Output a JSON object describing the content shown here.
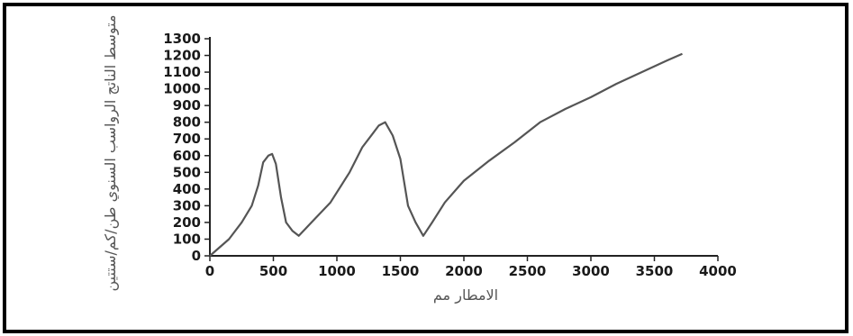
{
  "colors": {
    "line": "#555555",
    "axis": "#222222",
    "frame": "#000000"
  },
  "chart_data": {
    "type": "line",
    "title": "",
    "xlabel": "الامطار مم",
    "ylabel": "متوسط الناتج الرواسب السنوي طن/كم/ستتين",
    "xlim": [
      0,
      4000
    ],
    "ylim": [
      0,
      1300
    ],
    "xticks": [
      "0",
      "500",
      "1000",
      "1500",
      "2000",
      "2500",
      "3000",
      "3500",
      "4000"
    ],
    "yticks": [
      "0",
      "100",
      "200",
      "300",
      "400",
      "500",
      "600",
      "700",
      "800",
      "900",
      "1000",
      "1100",
      "1200",
      "1300"
    ],
    "grid": false,
    "series": [
      {
        "x": [
          0,
          150,
          250,
          330,
          380,
          420,
          460,
          490,
          520,
          560,
          600,
          650,
          700,
          800,
          950,
          1100,
          1200,
          1280,
          1330,
          1380,
          1440,
          1500,
          1560,
          1620,
          1680,
          1750,
          1850,
          2000,
          2200,
          2400,
          2600,
          2800,
          3000,
          3200,
          3400,
          3600,
          3720
        ],
        "y": [
          0,
          100,
          200,
          300,
          420,
          560,
          600,
          610,
          550,
          350,
          200,
          150,
          120,
          200,
          320,
          500,
          650,
          730,
          780,
          800,
          720,
          580,
          300,
          200,
          120,
          200,
          320,
          450,
          570,
          680,
          800,
          880,
          950,
          1030,
          1100,
          1170,
          1210
        ]
      }
    ]
  }
}
